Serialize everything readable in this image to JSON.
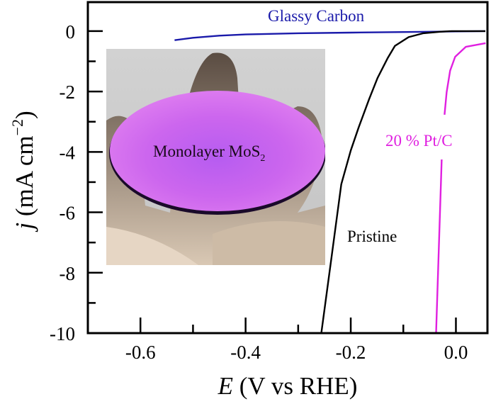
{
  "chart_data": {
    "type": "line",
    "title": "",
    "xlabel": {
      "italic": "E",
      "rest": " (V vs RHE)"
    },
    "ylabel": {
      "italic": "j",
      "rest": " (mA cm",
      "sup": "−2",
      "close": ")"
    },
    "xlim": [
      -0.7,
      0.06
    ],
    "ylim": [
      -10,
      0.96
    ],
    "x_ticks_major": [
      -0.6,
      -0.4,
      -0.2,
      0.0
    ],
    "x_tick_labels": [
      "-0.6",
      "-0.4",
      "-0.2",
      "0.0"
    ],
    "x_ticks_minor": [
      -0.5,
      -0.3,
      -0.1
    ],
    "y_ticks_major": [
      0,
      -2,
      -4,
      -6,
      -8,
      -10
    ],
    "y_tick_labels": [
      "0",
      "-2",
      "-4",
      "-6",
      "-8",
      "-10"
    ],
    "y_ticks_minor": [
      -1,
      -3,
      -5,
      -7,
      -9
    ],
    "grid": false,
    "series": [
      {
        "name": "Glassy Carbon",
        "color": "#1a1aaa",
        "x": [
          -0.535,
          -0.5,
          -0.45,
          -0.4,
          -0.3,
          -0.2,
          -0.1,
          0.0,
          0.056
        ],
        "y": [
          -0.3,
          -0.22,
          -0.15,
          -0.11,
          -0.07,
          -0.05,
          -0.03,
          -0.01,
          0.0
        ]
      },
      {
        "name": "Pristine",
        "color": "#000000",
        "x": [
          -0.256,
          -0.236,
          -0.218,
          -0.2,
          -0.185,
          -0.165,
          -0.149,
          -0.13,
          -0.116,
          -0.09,
          -0.062,
          -0.03,
          -0.008,
          0.056
        ],
        "y": [
          -10,
          -7.42,
          -5.07,
          -3.95,
          -3.19,
          -2.25,
          -1.55,
          -0.9,
          -0.49,
          -0.2,
          -0.07,
          -0.02,
          0.0,
          0.0
        ]
      },
      {
        "name": "20 % Pt/C",
        "color": "#e020e0",
        "x": [
          -0.0377,
          -0.027
        ],
        "y": [
          -10,
          -4.25
        ]
      },
      {
        "name": "20 % Pt/C (upper)",
        "color": "#e020e0",
        "x": [
          -0.0216,
          -0.0176,
          -0.011,
          -0.0014,
          0.0188,
          0.0564
        ],
        "y": [
          -2.77,
          -2.02,
          -1.31,
          -0.85,
          -0.52,
          -0.4
        ]
      }
    ],
    "annotations": [
      {
        "text": "Glassy Carbon",
        "color": "#1a1aaa"
      },
      {
        "text": "Pristine",
        "color": "#000000"
      },
      {
        "text": "20 % Pt/C",
        "color": "#e020e0"
      }
    ],
    "inset": {
      "label": "Monolayer MoS",
      "label_sub": "2"
    }
  }
}
